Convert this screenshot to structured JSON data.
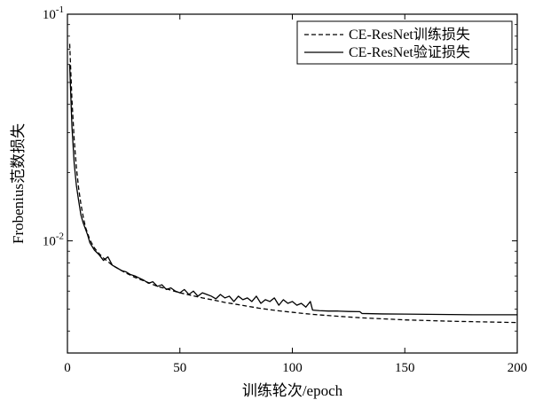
{
  "chart_data": {
    "type": "line",
    "title": "",
    "xlabel": "训练轮次/epoch",
    "ylabel": "Frobenius范数损失",
    "xlim": [
      0,
      200
    ],
    "ylim": [
      0.0032,
      0.1
    ],
    "yscale": "log",
    "x_ticks": [
      0,
      50,
      100,
      150,
      200
    ],
    "x_tick_labels": [
      "0",
      "50",
      "100",
      "150",
      "200"
    ],
    "y_ticks": [
      0.01,
      0.1
    ],
    "y_tick_labels": [
      {
        "base": "10",
        "exp": "-2"
      },
      {
        "base": "10",
        "exp": "-1"
      }
    ],
    "grid": false,
    "legend": "top-right",
    "series": [
      {
        "name": "CE-ResNet训练损失",
        "style": "dashed",
        "color": "#000000",
        "x": [
          1,
          2,
          3,
          4,
          5,
          6,
          7,
          8,
          10,
          12,
          14,
          16,
          18,
          20,
          25,
          30,
          35,
          40,
          45,
          50,
          55,
          60,
          65,
          70,
          75,
          80,
          85,
          90,
          95,
          100,
          105,
          110,
          115,
          120,
          130,
          140,
          150,
          160,
          170,
          180,
          190,
          200
        ],
        "y": [
          0.074,
          0.042,
          0.028,
          0.021,
          0.017,
          0.0145,
          0.0128,
          0.0115,
          0.0101,
          0.0093,
          0.0088,
          0.0084,
          0.0081,
          0.0078,
          0.0073,
          0.0069,
          0.0066,
          0.0063,
          0.0061,
          0.0059,
          0.00575,
          0.0056,
          0.00548,
          0.00535,
          0.00525,
          0.00515,
          0.00505,
          0.00497,
          0.0049,
          0.00484,
          0.00478,
          0.00473,
          0.00469,
          0.00465,
          0.00458,
          0.00453,
          0.00448,
          0.00445,
          0.00442,
          0.0044,
          0.00438,
          0.00436
        ]
      },
      {
        "name": "CE-ResNet验证损失",
        "style": "solid",
        "color": "#000000",
        "x": [
          1,
          2,
          3,
          4,
          5,
          6,
          7,
          8,
          9,
          10,
          12,
          14,
          16,
          18,
          20,
          22,
          24,
          26,
          28,
          30,
          32,
          34,
          36,
          38,
          40,
          42,
          44,
          46,
          48,
          50,
          52,
          54,
          56,
          58,
          60,
          62,
          64,
          66,
          68,
          70,
          72,
          74,
          76,
          78,
          80,
          82,
          84,
          86,
          88,
          90,
          92,
          94,
          96,
          98,
          100,
          102,
          104,
          106,
          108,
          109,
          112,
          116,
          120,
          125,
          130,
          131,
          140,
          150,
          160,
          170,
          180,
          190,
          200
        ],
        "y": [
          0.06,
          0.032,
          0.022,
          0.0175,
          0.015,
          0.013,
          0.012,
          0.0113,
          0.0106,
          0.0098,
          0.0091,
          0.0087,
          0.0082,
          0.0085,
          0.0078,
          0.0076,
          0.0074,
          0.0073,
          0.0071,
          0.007,
          0.00685,
          0.0067,
          0.0065,
          0.0066,
          0.0063,
          0.0064,
          0.0061,
          0.0062,
          0.006,
          0.0059,
          0.0061,
          0.0058,
          0.006,
          0.0057,
          0.0059,
          0.0058,
          0.0057,
          0.00555,
          0.0058,
          0.0056,
          0.0057,
          0.0054,
          0.0057,
          0.0055,
          0.0056,
          0.0054,
          0.0057,
          0.0053,
          0.0055,
          0.0054,
          0.0056,
          0.0052,
          0.0055,
          0.0053,
          0.0054,
          0.0052,
          0.0053,
          0.0051,
          0.0054,
          0.00495,
          0.00492,
          0.0049,
          0.0049,
          0.00488,
          0.00487,
          0.00478,
          0.00476,
          0.00475,
          0.00474,
          0.00473,
          0.00472,
          0.00472,
          0.00472
        ]
      }
    ]
  }
}
